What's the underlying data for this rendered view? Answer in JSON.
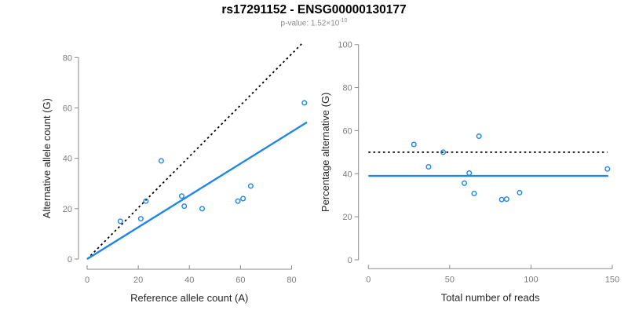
{
  "header": {
    "title": "rs17291152 - ENSG00000130177",
    "pvalue_base": "p-value: 1.52×10",
    "pvalue_exponent": "-10"
  },
  "colors": {
    "accent_blue": "#1E86EB",
    "dotted_black": "#000000",
    "axis_line": "#8a8a8a",
    "tick_label": "#7e7e7e",
    "axis_title": "#262626",
    "subtitle_gray": "#8d8d8d",
    "background": "#ffffff"
  },
  "chart_data": [
    {
      "type": "scatter",
      "panel": "left",
      "xlabel": "Reference allele count (A)",
      "ylabel": "Alternative allele count (G)",
      "xlim": [
        0,
        86
      ],
      "ylim": [
        0,
        86
      ],
      "xticks": [
        0,
        20,
        40,
        60,
        80
      ],
      "yticks": [
        0,
        20,
        40,
        60,
        80
      ],
      "grid": false,
      "marker": "open-circle",
      "points": [
        [
          13,
          15
        ],
        [
          21,
          16
        ],
        [
          23,
          23
        ],
        [
          29,
          39
        ],
        [
          37,
          25
        ],
        [
          38,
          21
        ],
        [
          45,
          20
        ],
        [
          59,
          23
        ],
        [
          61,
          24
        ],
        [
          64,
          29
        ],
        [
          85,
          62
        ]
      ],
      "lines": [
        {
          "name": "identity-dotted-line",
          "style": "dotted",
          "color": "#000000",
          "x1": 0,
          "y1": 0,
          "x2": 84.5,
          "y2": 86
        },
        {
          "name": "regression-line",
          "style": "solid",
          "color": "#1E86EB",
          "x1": 0,
          "y1": 0,
          "x2": 86,
          "y2": 54.3
        }
      ]
    },
    {
      "type": "scatter",
      "panel": "right",
      "xlabel": "Total number of reads",
      "ylabel": "Percentage alternative (G)",
      "xlim": [
        0,
        150
      ],
      "ylim": [
        0,
        100
      ],
      "xticks": [
        0,
        50,
        100,
        150
      ],
      "yticks": [
        0,
        20,
        40,
        60,
        80,
        100
      ],
      "grid": false,
      "marker": "open-circle",
      "points": [
        [
          28,
          53.6
        ],
        [
          37,
          43.2
        ],
        [
          46,
          50.0
        ],
        [
          68,
          57.4
        ],
        [
          62,
          40.3
        ],
        [
          59,
          35.6
        ],
        [
          65,
          30.8
        ],
        [
          82,
          28.0
        ],
        [
          85,
          28.2
        ],
        [
          93,
          31.2
        ],
        [
          147,
          42.2
        ]
      ],
      "lines": [
        {
          "name": "expected-50pct-dotted-line",
          "style": "dotted",
          "color": "#000000",
          "x1": 0,
          "y1": 50,
          "x2": 147,
          "y2": 50
        },
        {
          "name": "mean-percentage-line",
          "style": "solid",
          "color": "#1E86EB",
          "x1": 0,
          "y1": 39,
          "x2": 147.5,
          "y2": 39
        }
      ]
    }
  ]
}
